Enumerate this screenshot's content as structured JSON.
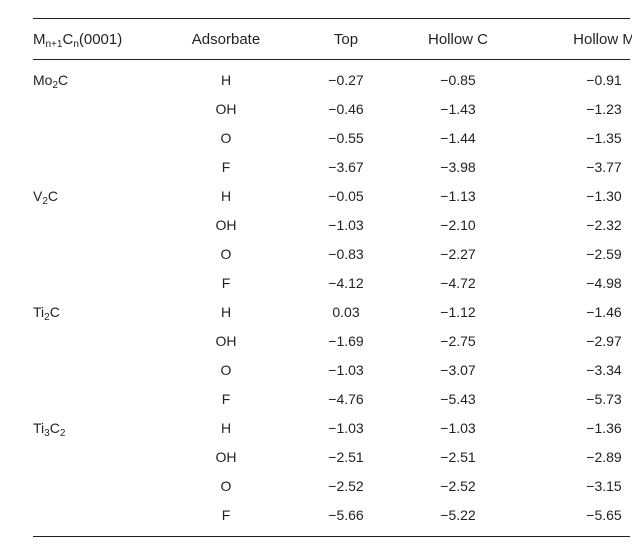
{
  "table": {
    "headers": {
      "surface": {
        "base": "M",
        "sub1": "n+1",
        "mid": "C",
        "sub2": "n",
        "tail": "(0001)"
      },
      "adsorbate": "Adsorbate",
      "top": "Top",
      "hollow_c": "Hollow C",
      "hollow_m": "Hollow M"
    },
    "groups": [
      {
        "surface": {
          "a": "Mo",
          "a_sub": "2",
          "b": "C",
          "b_sub": ""
        },
        "rows": [
          {
            "adsorbate": "H",
            "top": "−0.27",
            "hollow_c": "−0.85",
            "hollow_m": "−0.91"
          },
          {
            "adsorbate": "OH",
            "top": "−0.46",
            "hollow_c": "−1.43",
            "hollow_m": "−1.23"
          },
          {
            "adsorbate": "O",
            "top": "−0.55",
            "hollow_c": "−1.44",
            "hollow_m": "−1.35"
          },
          {
            "adsorbate": "F",
            "top": "−3.67",
            "hollow_c": "−3.98",
            "hollow_m": "−3.77"
          }
        ]
      },
      {
        "surface": {
          "a": "V",
          "a_sub": "2",
          "b": "C",
          "b_sub": ""
        },
        "rows": [
          {
            "adsorbate": "H",
            "top": "−0.05",
            "hollow_c": "−1.13",
            "hollow_m": "−1.30"
          },
          {
            "adsorbate": "OH",
            "top": "−1.03",
            "hollow_c": "−2.10",
            "hollow_m": "−2.32"
          },
          {
            "adsorbate": "O",
            "top": "−0.83",
            "hollow_c": "−2.27",
            "hollow_m": "−2.59"
          },
          {
            "adsorbate": "F",
            "top": "−4.12",
            "hollow_c": "−4.72",
            "hollow_m": "−4.98"
          }
        ]
      },
      {
        "surface": {
          "a": "Ti",
          "a_sub": "2",
          "b": "C",
          "b_sub": ""
        },
        "rows": [
          {
            "adsorbate": "H",
            "top": "0.03",
            "hollow_c": "−1.12",
            "hollow_m": "−1.46"
          },
          {
            "adsorbate": "OH",
            "top": "−1.69",
            "hollow_c": "−2.75",
            "hollow_m": "−2.97"
          },
          {
            "adsorbate": "O",
            "top": "−1.03",
            "hollow_c": "−3.07",
            "hollow_m": "−3.34"
          },
          {
            "adsorbate": "F",
            "top": "−4.76",
            "hollow_c": "−5.43",
            "hollow_m": "−5.73"
          }
        ]
      },
      {
        "surface": {
          "a": "Ti",
          "a_sub": "3",
          "b": "C",
          "b_sub": "2"
        },
        "rows": [
          {
            "adsorbate": "H",
            "top": "−1.03",
            "hollow_c": "−1.03",
            "hollow_m": "−1.36"
          },
          {
            "adsorbate": "OH",
            "top": "−2.51",
            "hollow_c": "−2.51",
            "hollow_m": "−2.89"
          },
          {
            "adsorbate": "O",
            "top": "−2.52",
            "hollow_c": "−2.52",
            "hollow_m": "−3.15"
          },
          {
            "adsorbate": "F",
            "top": "−5.66",
            "hollow_c": "−5.22",
            "hollow_m": "−5.65"
          }
        ]
      }
    ]
  }
}
